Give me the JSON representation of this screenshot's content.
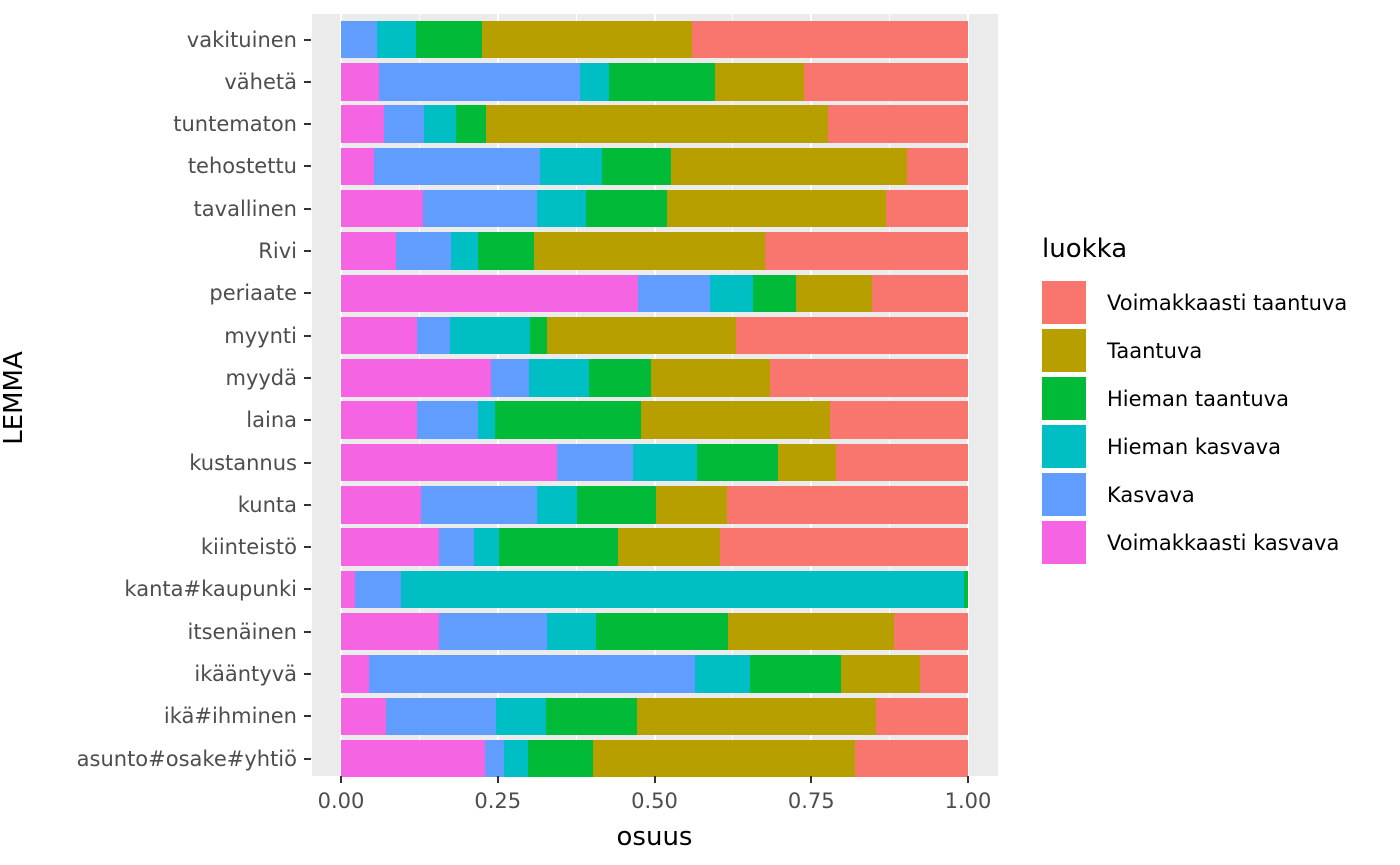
{
  "chart_data": {
    "type": "bar",
    "orientation": "horizontal",
    "stacked": true,
    "stack_order": "reverse-legend",
    "xlabel": "osuus",
    "ylabel": "LEMMA",
    "xlim": [
      0,
      1
    ],
    "x_ticks": [
      {
        "label": "0.00",
        "value": 0
      },
      {
        "label": "0.25",
        "value": 0.25
      },
      {
        "label": "0.50",
        "value": 0.5
      },
      {
        "label": "0.75",
        "value": 0.75
      },
      {
        "label": "1.00",
        "value": 1
      }
    ],
    "x_minor_ticks": [
      0.125,
      0.375,
      0.625,
      0.875
    ],
    "grid": true,
    "panel_background": "#EBEBEB",
    "grid_color": "#FFFFFF",
    "axis_text_color": "#4D4D4D",
    "legend": {
      "title": "luokka",
      "position": "right"
    },
    "categories": [
      "vakituinen",
      "vähetä",
      "tuntematon",
      "tehostettu",
      "tavallinen",
      "Rivi",
      "periaate",
      "myynti",
      "myydä",
      "laina",
      "kustannus",
      "kunta",
      "kiinteistö",
      "kanta#kaupunki",
      "itsenäinen",
      "ikääntyvä",
      "ikä#ihminen",
      "asunto#osake#yhtiö"
    ],
    "series": [
      {
        "name": "Voimakkaasti taantuva",
        "color": "#F8766D",
        "values": [
          0.44,
          0.262,
          0.223,
          0.097,
          0.131,
          0.324,
          0.153,
          0.37,
          0.316,
          0.22,
          0.211,
          0.384,
          0.395,
          0.0,
          0.118,
          0.076,
          0.147,
          0.181
        ]
      },
      {
        "name": "Taantuva",
        "color": "#B79F00",
        "values": [
          0.335,
          0.142,
          0.546,
          0.376,
          0.349,
          0.368,
          0.121,
          0.302,
          0.189,
          0.301,
          0.092,
          0.113,
          0.163,
          0.0,
          0.265,
          0.127,
          0.381,
          0.417
        ]
      },
      {
        "name": "Hieman taantuva",
        "color": "#00BA38",
        "values": [
          0.106,
          0.169,
          0.048,
          0.111,
          0.13,
          0.089,
          0.069,
          0.027,
          0.1,
          0.233,
          0.129,
          0.127,
          0.19,
          0.007,
          0.211,
          0.145,
          0.145,
          0.103
        ]
      },
      {
        "name": "Hieman kasvava",
        "color": "#00BFC4",
        "values": [
          0.062,
          0.046,
          0.051,
          0.098,
          0.078,
          0.044,
          0.069,
          0.127,
          0.095,
          0.027,
          0.103,
          0.064,
          0.04,
          0.897,
          0.078,
          0.088,
          0.08,
          0.039
        ]
      },
      {
        "name": "Kasvava",
        "color": "#619CFF",
        "values": [
          0.057,
          0.32,
          0.063,
          0.265,
          0.182,
          0.088,
          0.114,
          0.053,
          0.06,
          0.098,
          0.121,
          0.185,
          0.055,
          0.074,
          0.171,
          0.519,
          0.175,
          0.031
        ]
      },
      {
        "name": "Voimakkaasti kasvava",
        "color": "#F564E3",
        "values": [
          0.0,
          0.061,
          0.069,
          0.053,
          0.13,
          0.087,
          0.474,
          0.121,
          0.24,
          0.121,
          0.344,
          0.127,
          0.157,
          0.022,
          0.157,
          0.045,
          0.072,
          0.229
        ]
      }
    ]
  }
}
